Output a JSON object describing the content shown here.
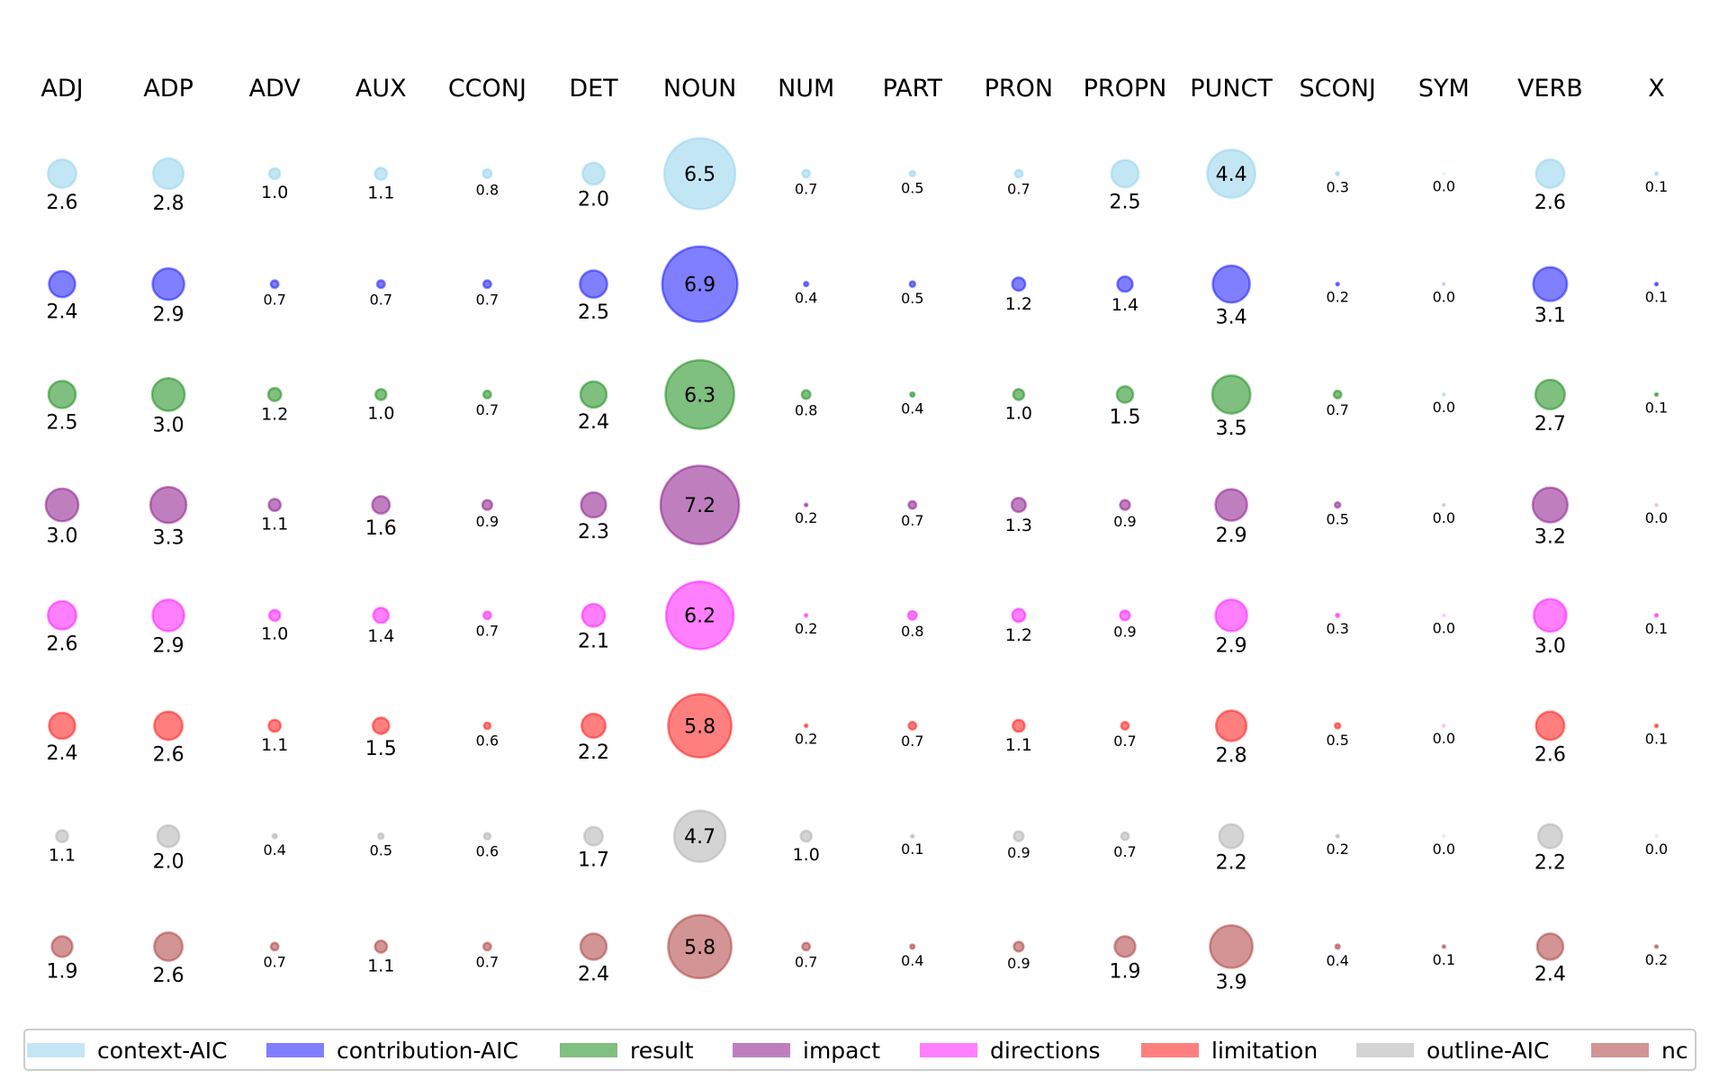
{
  "chart_data": {
    "type": "bubble-matrix",
    "categories": [
      "ADJ",
      "ADP",
      "ADV",
      "AUX",
      "CCONJ",
      "DET",
      "NOUN",
      "NUM",
      "PART",
      "PRON",
      "PROPN",
      "PUNCT",
      "SCONJ",
      "SYM",
      "VERB",
      "X"
    ],
    "series": [
      {
        "name": "context-AIC",
        "color": "#87CEEB",
        "values": [
          2.6,
          2.8,
          1.0,
          1.1,
          0.8,
          2.0,
          6.5,
          0.7,
          0.5,
          0.7,
          2.5,
          4.4,
          0.3,
          0.0,
          2.6,
          0.1
        ]
      },
      {
        "name": "contribution-AIC",
        "color": "#0000FF",
        "values": [
          2.4,
          2.9,
          0.7,
          0.7,
          0.7,
          2.5,
          6.9,
          0.4,
          0.5,
          1.2,
          1.4,
          3.4,
          0.2,
          0.0,
          3.1,
          0.1
        ]
      },
      {
        "name": "result",
        "color": "#008000",
        "values": [
          2.5,
          3.0,
          1.2,
          1.0,
          0.7,
          2.4,
          6.3,
          0.8,
          0.4,
          1.0,
          1.5,
          3.5,
          0.7,
          0.0,
          2.7,
          0.1
        ]
      },
      {
        "name": "impact",
        "color": "#800080",
        "values": [
          3.0,
          3.3,
          1.1,
          1.6,
          0.9,
          2.3,
          7.2,
          0.2,
          0.7,
          1.3,
          0.9,
          2.9,
          0.5,
          0.0,
          3.2,
          0.0
        ]
      },
      {
        "name": "directions",
        "color": "#FF00FF",
        "values": [
          2.6,
          2.9,
          1.0,
          1.4,
          0.7,
          2.1,
          6.2,
          0.2,
          0.8,
          1.2,
          0.9,
          2.9,
          0.3,
          0.0,
          3.0,
          0.1
        ]
      },
      {
        "name": "limitation",
        "color": "#FF0000",
        "values": [
          2.4,
          2.6,
          1.1,
          1.5,
          0.6,
          2.2,
          5.8,
          0.2,
          0.7,
          1.1,
          0.7,
          2.8,
          0.5,
          0.0,
          2.6,
          0.1
        ]
      },
      {
        "name": "outline-AIC",
        "color": "#A9A9A9",
        "values": [
          1.1,
          2.0,
          0.4,
          0.5,
          0.6,
          1.7,
          4.7,
          1.0,
          0.1,
          0.9,
          0.7,
          2.2,
          0.2,
          0.0,
          2.2,
          0.0
        ]
      },
      {
        "name": "nc",
        "color": "#A52A2A",
        "values": [
          1.9,
          2.6,
          0.7,
          1.1,
          0.7,
          2.4,
          5.8,
          0.7,
          0.4,
          0.9,
          1.9,
          3.9,
          0.4,
          0.1,
          2.4,
          0.2
        ]
      }
    ],
    "legend": "bottom",
    "grid": false,
    "axes": false
  }
}
